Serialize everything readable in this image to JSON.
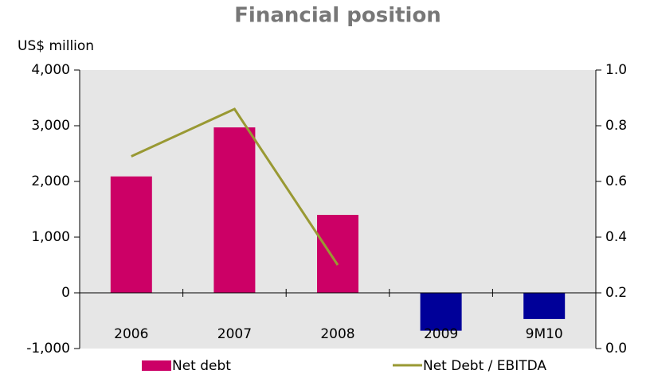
{
  "chart_data": {
    "type": "bar-line",
    "title": "Financial position",
    "y_label": "US$ million",
    "categories": [
      "2006",
      "2007",
      "2008",
      "2009",
      "9M10"
    ],
    "series": [
      {
        "name": "Net debt",
        "type": "bar",
        "color": "#cc0066",
        "colors": [
          "#cc0066",
          "#cc0066",
          "#cc0066",
          "#000099",
          "#000099"
        ],
        "values": [
          2090,
          2970,
          1400,
          -680,
          -470
        ]
      },
      {
        "name": "Net Debt / EBITDA",
        "type": "line",
        "axis": "y2",
        "color": "#999933",
        "values": [
          0.69,
          0.86,
          0.3,
          null,
          null
        ]
      }
    ],
    "ylim": [
      -1000,
      4000
    ],
    "yticks": [
      {
        "value": -1000,
        "label": "-1,000"
      },
      0,
      {
        "value": 1000,
        "label": "1,000"
      },
      {
        "value": 2000,
        "label": "2,000"
      },
      {
        "value": 3000,
        "label": "3,000"
      },
      {
        "value": 4000,
        "label": "4,000"
      }
    ],
    "y2lim": [
      0,
      1
    ],
    "y2ticks": [
      {
        "value": 0,
        "label": "0.0"
      },
      0.2,
      0.4,
      0.6,
      0.8,
      {
        "value": 1,
        "label": "1.0"
      }
    ],
    "grid": false
  }
}
